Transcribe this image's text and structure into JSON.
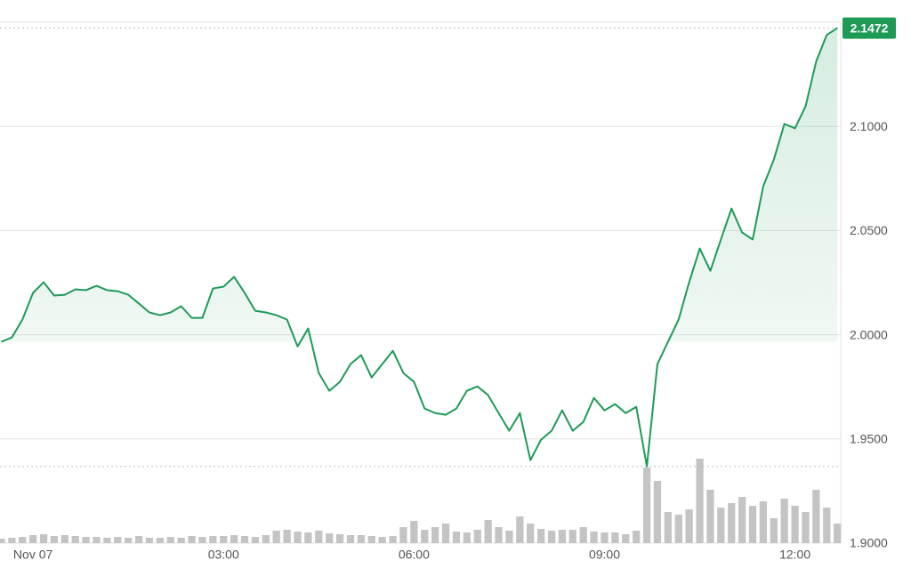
{
  "chart_data": {
    "type": "line",
    "x": [
      -0.5,
      -0.333,
      -0.167,
      0,
      0.167,
      0.333,
      0.5,
      0.667,
      0.833,
      1,
      1.167,
      1.333,
      1.5,
      1.667,
      1.833,
      2,
      2.167,
      2.333,
      2.5,
      2.667,
      2.833,
      3,
      3.167,
      3.333,
      3.5,
      3.667,
      3.833,
      4,
      4.167,
      4.333,
      4.5,
      4.667,
      4.833,
      5,
      5.167,
      5.333,
      5.5,
      5.667,
      5.833,
      6,
      6.167,
      6.333,
      6.5,
      6.667,
      6.833,
      7,
      7.167,
      7.333,
      7.5,
      7.667,
      7.833,
      8,
      8.167,
      8.333,
      8.5,
      8.667,
      8.833,
      9,
      9.167,
      9.333,
      9.5,
      9.667,
      9.833,
      10,
      10.167,
      10.333,
      10.5,
      10.667,
      10.833,
      11,
      11.167,
      11.333,
      11.5,
      11.667,
      11.833,
      12,
      12.167,
      12.333,
      12.5,
      12.667
    ],
    "series": [
      {
        "color": "#1e9a57",
        "values": [
          1.9966,
          1.9987,
          2.0073,
          2.0201,
          2.0252,
          2.0188,
          2.0192,
          2.0218,
          2.0214,
          2.0235,
          2.0214,
          2.0209,
          2.0192,
          2.015,
          2.0107,
          2.0094,
          2.0107,
          2.0137,
          2.0081,
          2.0081,
          2.0222,
          2.0231,
          2.0278,
          2.0201,
          2.0115,
          2.0107,
          2.0094,
          2.0073,
          1.9944,
          2.003,
          1.9816,
          1.9731,
          1.9774,
          1.9859,
          1.9902,
          1.9795,
          1.9859,
          1.9923,
          1.9816,
          1.9774,
          1.9646,
          1.9624,
          1.9616,
          1.9646,
          1.9731,
          1.9752,
          1.971,
          1.9624,
          1.9539,
          1.9624,
          1.9398,
          1.9496,
          1.9539,
          1.9637,
          1.9539,
          1.9582,
          1.9697,
          1.9637,
          1.9667,
          1.9624,
          1.9654,
          1.9368,
          1.9859,
          1.9966,
          2.0073,
          2.0252,
          2.0414,
          2.0307,
          2.0457,
          2.0606,
          2.0491,
          2.0457,
          2.0713,
          2.0841,
          2.1012,
          2.0991,
          2.1097,
          2.1311,
          2.1439,
          2.1472
        ]
      }
    ],
    "volume": [
      5,
      6,
      7,
      9,
      10,
      8,
      9,
      8,
      7,
      7,
      6,
      7,
      6,
      8,
      6,
      6,
      7,
      6,
      8,
      7,
      8,
      8,
      9,
      8,
      7,
      9,
      14,
      15,
      13,
      12,
      14,
      11,
      10,
      9,
      9,
      8,
      7,
      8,
      18,
      25,
      15,
      18,
      22,
      13,
      12,
      15,
      26,
      18,
      14,
      30,
      22,
      16,
      14,
      15,
      15,
      18,
      13,
      12,
      12,
      10,
      14,
      85,
      70,
      35,
      32,
      38,
      95,
      60,
      40,
      45,
      52,
      42,
      47,
      28,
      50,
      42,
      35,
      60,
      40,
      22
    ],
    "volume_color": "#c4c4c4",
    "xlim": [
      -0.52,
      12.72
    ],
    "xticks": [
      {
        "value": 0,
        "label": "Nov 07"
      },
      {
        "value": 3,
        "label": "03:00"
      },
      {
        "value": 6,
        "label": "06:00"
      },
      {
        "value": 9,
        "label": "09:00"
      },
      {
        "value": 12,
        "label": "12:00"
      }
    ],
    "ylim": [
      1.9,
      2.15
    ],
    "yticks": [
      {
        "value": 1.9,
        "label": "1.9000"
      },
      {
        "value": 1.95,
        "label": "1.9500"
      },
      {
        "value": 2.0,
        "label": "2.0000"
      },
      {
        "value": 2.05,
        "label": "2.0500"
      },
      {
        "value": 2.1,
        "label": "2.1000"
      }
    ],
    "grid": true
  }
}
